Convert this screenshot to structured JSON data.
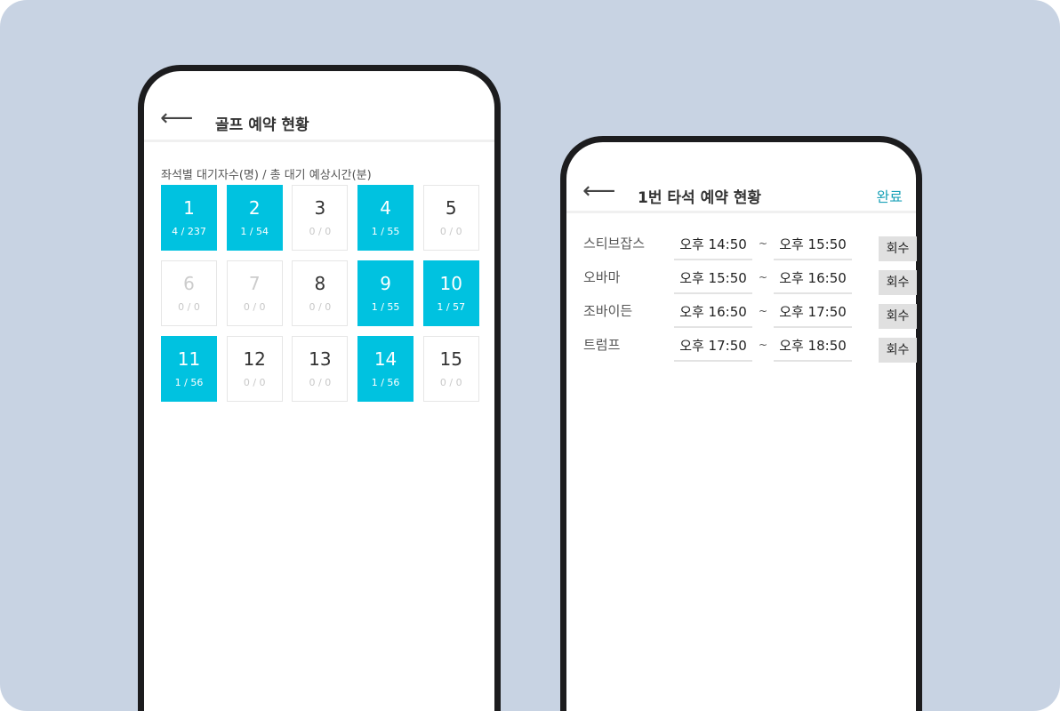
{
  "left": {
    "back_icon": "arrow-left-icon",
    "title": "골프 예약 현황",
    "subtitle": "좌석별 대기자수(명) / 총 대기 예상시간(분)",
    "accent": "#00c2e0",
    "seats": [
      {
        "num": "1",
        "stat": "4 / 237",
        "state": "active"
      },
      {
        "num": "2",
        "stat": "1 / 54",
        "state": "active"
      },
      {
        "num": "3",
        "stat": "0 / 0",
        "state": "empty"
      },
      {
        "num": "4",
        "stat": "1 / 55",
        "state": "active"
      },
      {
        "num": "5",
        "stat": "0 / 0",
        "state": "empty"
      },
      {
        "num": "6",
        "stat": "0 / 0",
        "state": "disabled"
      },
      {
        "num": "7",
        "stat": "0 / 0",
        "state": "disabled"
      },
      {
        "num": "8",
        "stat": "0 / 0",
        "state": "empty"
      },
      {
        "num": "9",
        "stat": "1 / 55",
        "state": "active"
      },
      {
        "num": "10",
        "stat": "1 / 57",
        "state": "active"
      },
      {
        "num": "11",
        "stat": "1 / 56",
        "state": "active"
      },
      {
        "num": "12",
        "stat": "0 / 0",
        "state": "empty"
      },
      {
        "num": "13",
        "stat": "0 / 0",
        "state": "empty"
      },
      {
        "num": "14",
        "stat": "1 / 56",
        "state": "active"
      },
      {
        "num": "15",
        "stat": "0 / 0",
        "state": "empty"
      }
    ]
  },
  "right": {
    "back_icon": "arrow-left-icon",
    "title": "1번 타석 예약 현황",
    "done_label": "완료",
    "separator": "~",
    "reservations": [
      {
        "name": "스티브잡스",
        "start": "오후 14:50",
        "end": "오후 15:50",
        "action": "회수"
      },
      {
        "name": "오바마",
        "start": "오후 15:50",
        "end": "오후 16:50",
        "action": "회수"
      },
      {
        "name": "조바이든",
        "start": "오후 16:50",
        "end": "오후 17:50",
        "action": "회수"
      },
      {
        "name": "트럼프",
        "start": "오후 17:50",
        "end": "오후 18:50",
        "action": "회수"
      }
    ]
  }
}
